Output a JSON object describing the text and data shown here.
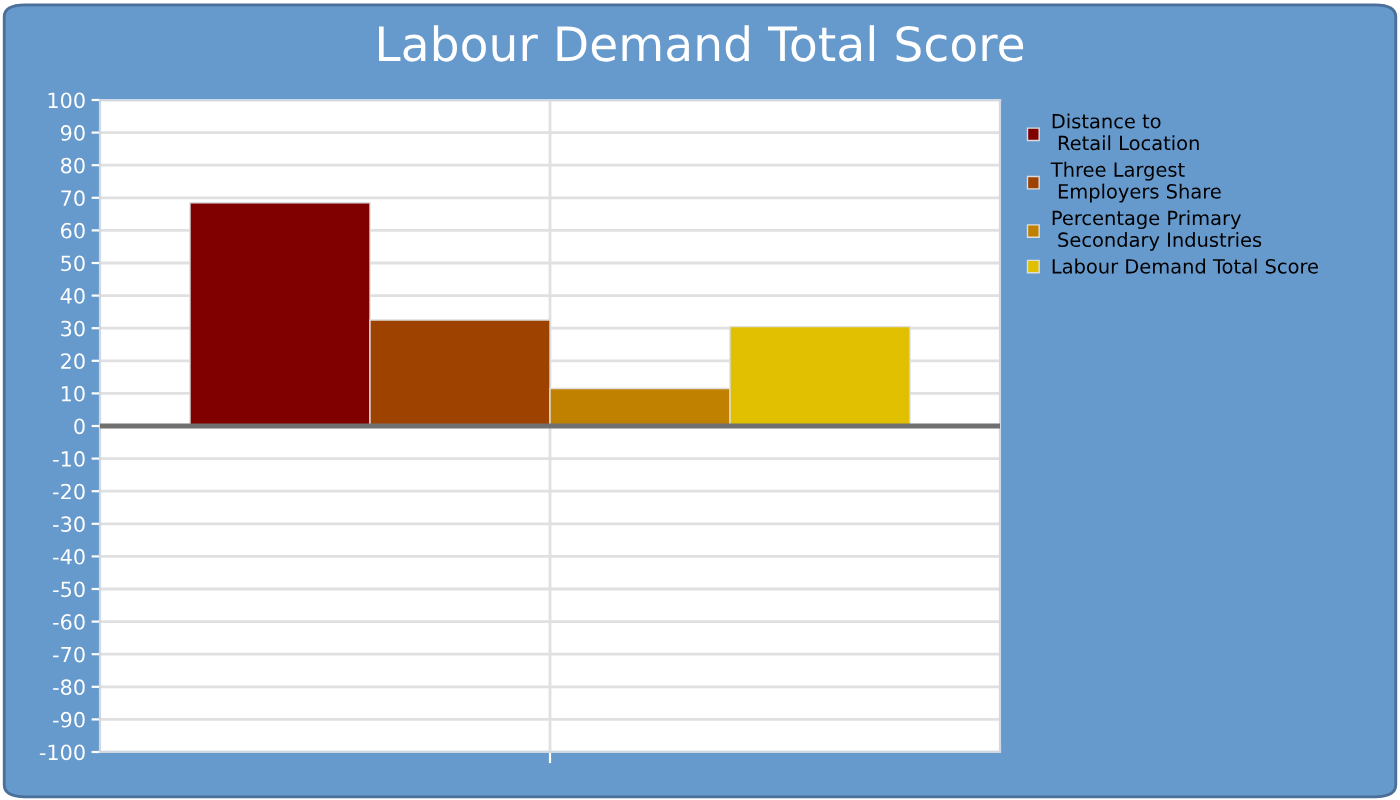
{
  "chart_data": {
    "type": "bar",
    "title": "Labour Demand Total Score",
    "categories": [
      null
    ],
    "series": [
      {
        "name": "Distance to\n Retail Location",
        "color": "#800000",
        "values": [
          68.5
        ]
      },
      {
        "name": "Three Largest\n Employers Share",
        "color": "#9e4200",
        "values": [
          32.5
        ]
      },
      {
        "name": "Percentage Primary\n Secondary Industries",
        "color": "#c08000",
        "values": [
          11.5
        ]
      },
      {
        "name": "Labour Demand Total Score",
        "color": "#e0c000",
        "values": [
          30.5
        ]
      }
    ],
    "ylim": [
      -100,
      100
    ],
    "yticks": [
      -100,
      -90,
      -80,
      -70,
      -60,
      -50,
      -40,
      -30,
      -20,
      -10,
      0,
      10,
      20,
      30,
      40,
      50,
      60,
      70,
      80,
      90,
      100
    ],
    "grid": true,
    "legend": "top right"
  }
}
